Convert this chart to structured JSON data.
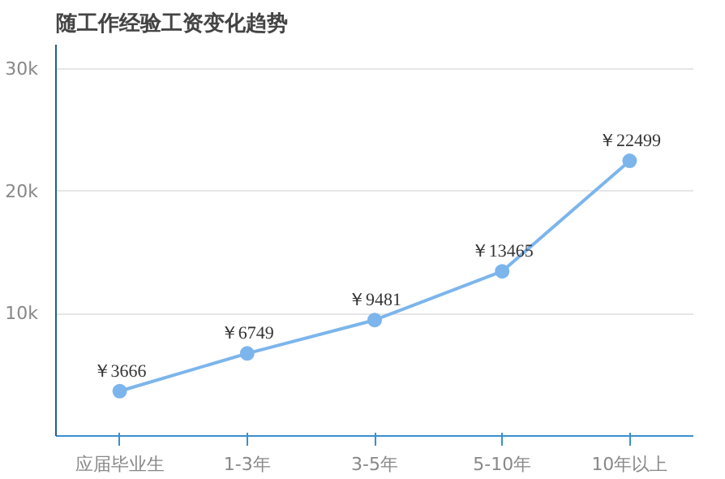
{
  "chart_data": {
    "type": "line",
    "title": "随工作经验工资变化趋势",
    "categories": [
      "应届毕业生",
      "1-3年",
      "3-5年",
      "5-10年",
      "10年以上"
    ],
    "values": [
      3666,
      6749,
      9481,
      13465,
      22499
    ],
    "value_labels": [
      "￥3666",
      "￥6749",
      "￥9481",
      "￥13465",
      "￥22499"
    ],
    "color": "#7cb5ec",
    "marker": "circle",
    "line_style": "solid",
    "grid": "y",
    "ylim": [
      0,
      32000
    ],
    "yticks": [
      {
        "value": 10000,
        "label": "10k"
      },
      {
        "value": 20000,
        "label": "20k"
      },
      {
        "value": 30000,
        "label": "30k"
      }
    ]
  }
}
